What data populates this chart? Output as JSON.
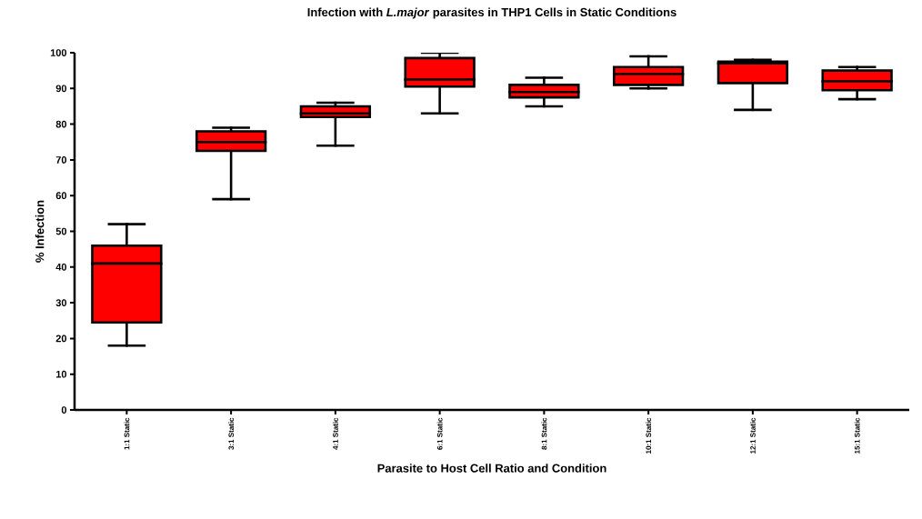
{
  "chart_data": {
    "type": "box",
    "title": "Infection with *L.major* parasites in THP1 Cells in Static Conditions",
    "xlabel": "Parasite to  Host  Cell Ratio and Condition",
    "ylabel": "% Infection",
    "categories": [
      "1:1 Static",
      "3:1 Static",
      "4:1 Static",
      "6:1 Static",
      "8:1 Static",
      "10:1 Static",
      "12:1 Static",
      "15:1 Static"
    ],
    "ylim": [
      0,
      100
    ],
    "yticks": [
      0,
      10,
      20,
      30,
      40,
      50,
      60,
      70,
      80,
      90,
      100
    ],
    "series": [
      {
        "color": "#ff0000",
        "boxes": [
          {
            "low": 18,
            "q1": 24.5,
            "median": 41,
            "q3": 46,
            "high": 52
          },
          {
            "low": 59,
            "q1": 72.5,
            "median": 75,
            "q3": 78,
            "high": 79
          },
          {
            "low": 74,
            "q1": 82,
            "median": 83,
            "q3": 85,
            "high": 86
          },
          {
            "low": 83,
            "q1": 90.5,
            "median": 92.5,
            "q3": 98.5,
            "high": 100
          },
          {
            "low": 85,
            "q1": 87.5,
            "median": 89,
            "q3": 91,
            "high": 93
          },
          {
            "low": 90,
            "q1": 91,
            "median": 94,
            "q3": 96,
            "high": 99
          },
          {
            "low": 84,
            "q1": 91.5,
            "median": 97,
            "q3": 97.5,
            "high": 98
          },
          {
            "low": 87,
            "q1": 89.5,
            "median": 92,
            "q3": 95,
            "high": 96
          }
        ]
      }
    ]
  }
}
